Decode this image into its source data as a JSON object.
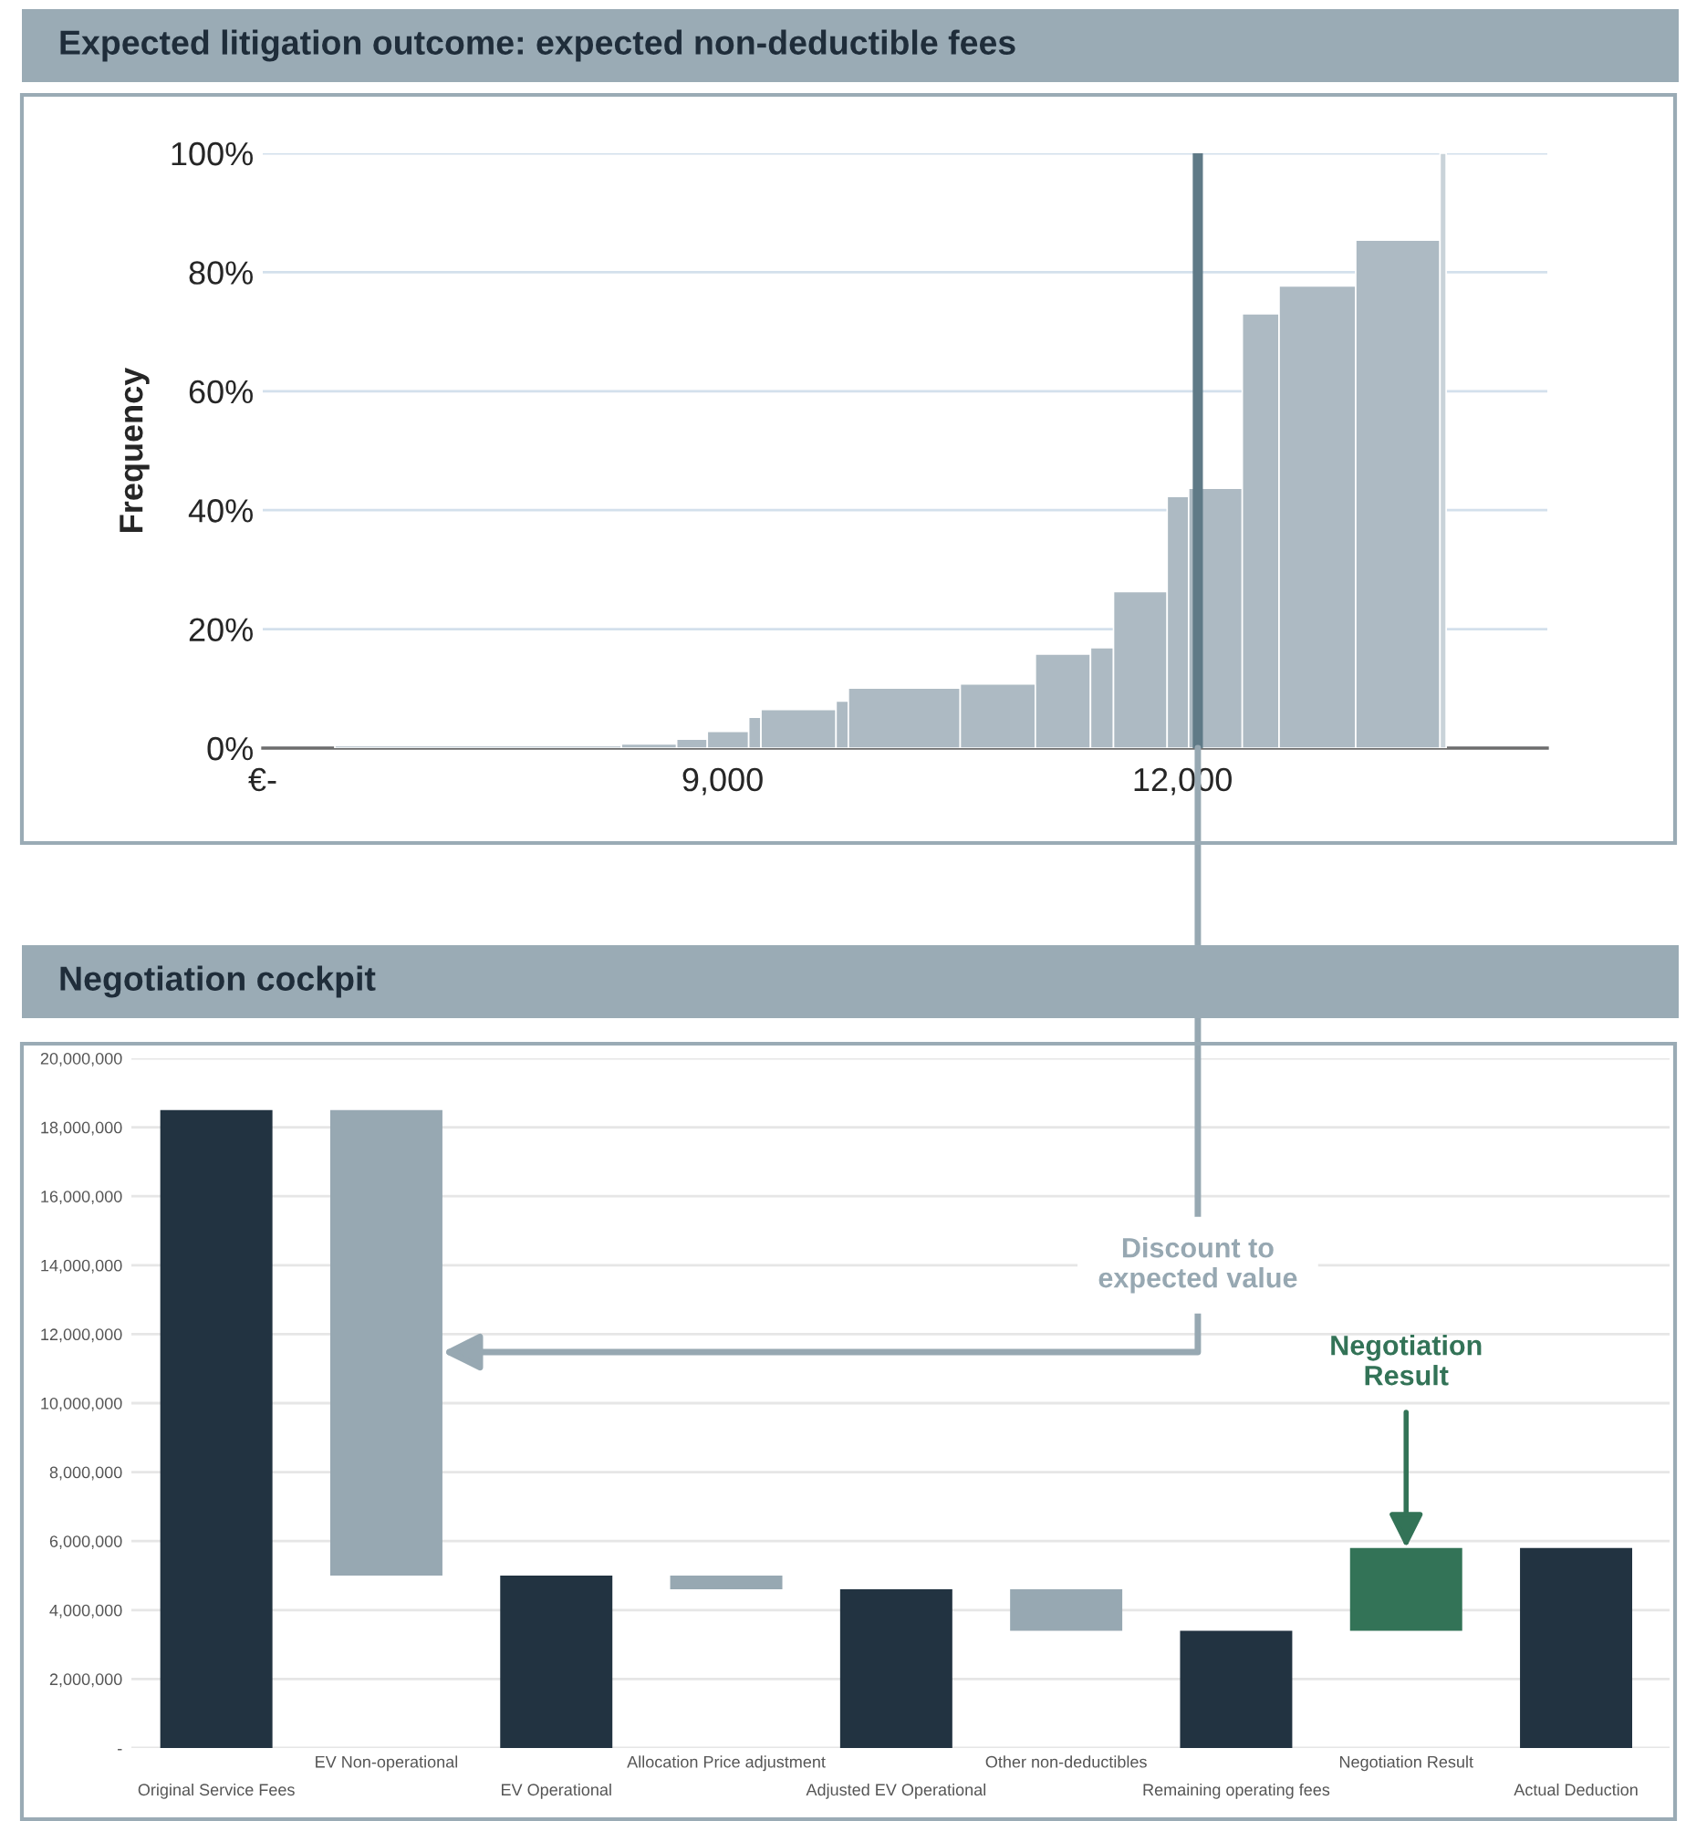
{
  "chart_data": [
    {
      "type": "histogram",
      "title": "Expected litigation outcome: expected non-deductible fees",
      "ylabel": "Frequency",
      "bins": [
        6470,
        8340,
        8700,
        8900,
        9170,
        9250,
        9740,
        9820,
        10550,
        11040,
        11400,
        11550,
        11900,
        12040,
        12390,
        12630,
        13130,
        13680,
        13720
      ],
      "values": [
        0.4,
        0.7,
        1.5,
        2.8,
        5.2,
        6.5,
        7.9,
        10.1,
        10.8,
        15.8,
        16.9,
        26.3,
        42.3,
        43.7,
        73.0,
        77.7,
        85.4,
        100
      ],
      "colors": [
        "#adbac3",
        "#adbac3",
        "#adbac3",
        "#adbac3",
        "#adbac3",
        "#adbac3",
        "#adbac3",
        "#adbac3",
        "#adbac3",
        "#adbac3",
        "#adbac3",
        "#adbac3",
        "#adbac3",
        "#adbac3",
        "#adbac3",
        "#adbac3",
        "#adbac3",
        "#c9d3d9"
      ],
      "xlim": [
        6000,
        14380
      ],
      "xticks": [
        {
          "value": 6000,
          "label": "€-"
        },
        {
          "value": 9000,
          "label": "9,000"
        },
        {
          "value": 12000,
          "label": "12,000"
        }
      ],
      "ylim": [
        0,
        100
      ],
      "yticks": [
        {
          "value": 0,
          "label": "0%"
        },
        {
          "value": 20,
          "label": "20%"
        },
        {
          "value": 40,
          "label": "40%"
        },
        {
          "value": 60,
          "label": "60%"
        },
        {
          "value": 80,
          "label": "80%"
        },
        {
          "value": 100,
          "label": "100%"
        }
      ],
      "grid": "y",
      "ref_lines": [
        {
          "axis": "x",
          "value": 12100,
          "color": "#5f7a87"
        }
      ]
    },
    {
      "type": "bar",
      "title": "Negotiation cockpit",
      "categories": [
        "Original Service Fees",
        "EV Non-operational",
        "EV Operational",
        "Allocation Price adjustment",
        "Adjusted EV Operational",
        "Other non-deductibles",
        "Remaining operating fees",
        "Negotiation Result",
        "Actual Deduction"
      ],
      "values": [
        18500000,
        13500000,
        5000000,
        400000,
        4600000,
        1200000,
        3400000,
        2400000,
        5800000
      ],
      "base": [
        0,
        5000000,
        0,
        4600000,
        0,
        3400000,
        0,
        3400000,
        0
      ],
      "colors": [
        "#223341",
        "#97a8b2",
        "#223341",
        "#97a8b2",
        "#223341",
        "#97a8b2",
        "#223341",
        "#337357",
        "#223341"
      ],
      "ylim": [
        0,
        20000000
      ],
      "yticks": [
        {
          "value": 0,
          "label": "-"
        },
        {
          "value": 2000000,
          "label": "2,000,000"
        },
        {
          "value": 4000000,
          "label": "4,000,000"
        },
        {
          "value": 6000000,
          "label": "6,000,000"
        },
        {
          "value": 8000000,
          "label": "8,000,000"
        },
        {
          "value": 10000000,
          "label": "10,000,000"
        },
        {
          "value": 12000000,
          "label": "12,000,000"
        },
        {
          "value": 14000000,
          "label": "14,000,000"
        },
        {
          "value": 16000000,
          "label": "16,000,000"
        },
        {
          "value": 18000000,
          "label": "18,000,000"
        },
        {
          "value": 20000000,
          "label": "20,000,000"
        }
      ],
      "grid": "y",
      "annotations": [
        "Discount to\nexpected value",
        {
          "text": "Negotiation\nResult",
          "x": "Negotiation Result",
          "y": 5800000
        }
      ]
    }
  ]
}
